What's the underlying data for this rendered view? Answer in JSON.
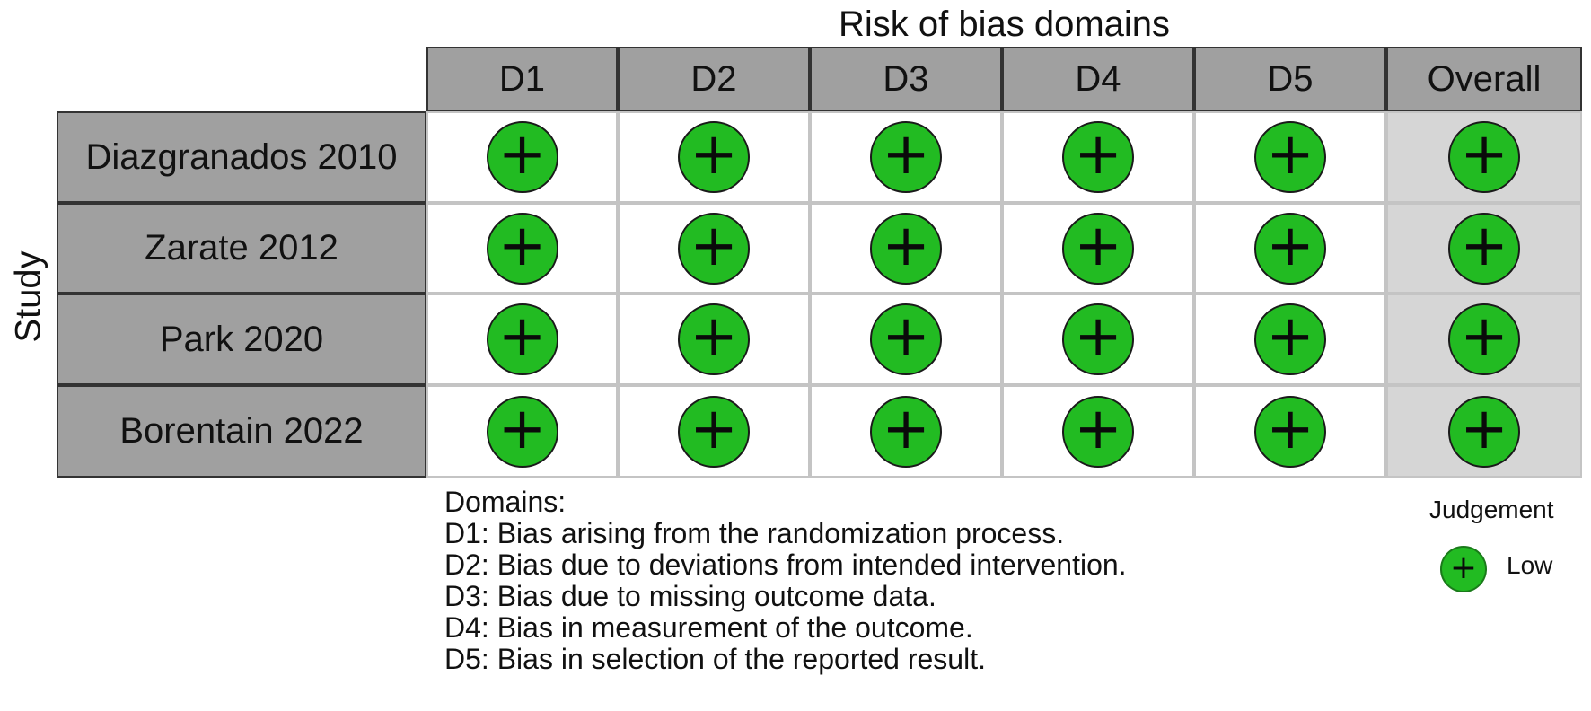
{
  "chart_data": {
    "type": "table",
    "title": "Risk of bias domains",
    "ylabel": "Study",
    "columns": [
      "D1",
      "D2",
      "D3",
      "D4",
      "D5",
      "Overall"
    ],
    "rows": [
      "Diazgranados 2010",
      "Zarate 2012",
      "Park 2020",
      "Borentain 2022"
    ],
    "judgements": [
      [
        "Low",
        "Low",
        "Low",
        "Low",
        "Low",
        "Low"
      ],
      [
        "Low",
        "Low",
        "Low",
        "Low",
        "Low",
        "Low"
      ],
      [
        "Low",
        "Low",
        "Low",
        "Low",
        "Low",
        "Low"
      ],
      [
        "Low",
        "Low",
        "Low",
        "Low",
        "Low",
        "Low"
      ]
    ],
    "symbol": "+",
    "colors": {
      "low": "#22bb22",
      "header": "#a0a0a0",
      "overall_bg": "#d6d6d6"
    }
  },
  "legend": {
    "domains_title": "Domains:",
    "domains": [
      "D1: Bias arising from the randomization process.",
      "D2: Bias due to deviations from intended intervention.",
      "D3: Bias due to missing outcome data.",
      "D4: Bias in measurement of the outcome.",
      "D5: Bias in selection of the reported result."
    ],
    "judgement_title": "Judgement",
    "judgement_label": "Low",
    "judgement_symbol": "+"
  }
}
